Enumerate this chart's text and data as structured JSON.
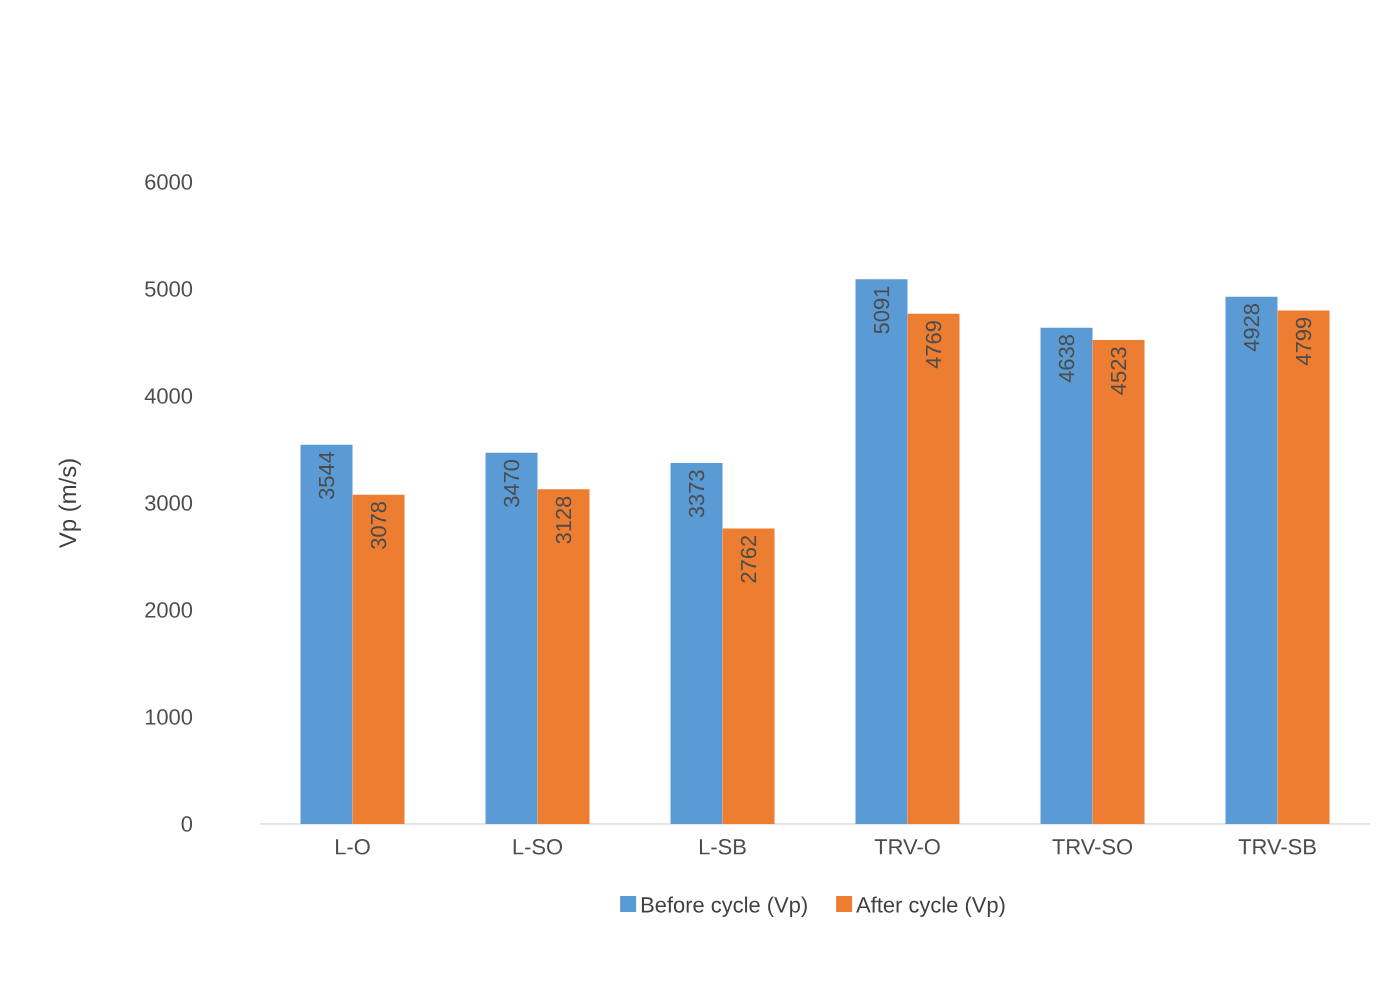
{
  "chart_data": {
    "type": "bar",
    "ylabel": "Vp (m/s)",
    "categories": [
      "L-O",
      "L-SO",
      "L-SB",
      "TRV-O",
      "TRV-SO",
      "TRV-SB"
    ],
    "series": [
      {
        "name": "Before cycle (Vp)",
        "color": "#5b9bd5",
        "values": [
          3544,
          3470,
          3373,
          5091,
          4638,
          4928
        ]
      },
      {
        "name": "After cycle (Vp)",
        "color": "#ed7d31",
        "values": [
          3078,
          3128,
          2762,
          4769,
          4523,
          4799
        ]
      }
    ],
    "ylim": [
      0,
      6000
    ],
    "yticks": [
      0,
      1000,
      2000,
      3000,
      4000,
      5000,
      6000
    ],
    "data_labels": true,
    "legend": "bottom"
  }
}
